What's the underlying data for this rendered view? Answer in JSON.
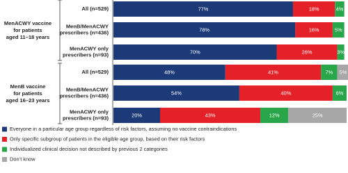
{
  "chart_data": {
    "type": "stacked-bar-horizontal",
    "groups": [
      {
        "label": [
          "MenACWY vaccine",
          "for patients",
          "aged 11–18 years"
        ],
        "categories": [
          [
            "All (n=529)"
          ],
          [
            "MenB/MenACWY",
            "prescribers (n=436)"
          ],
          [
            "MenACWY only",
            "prescribers (n=93)"
          ]
        ]
      },
      {
        "label": [
          "MenB vaccine",
          "for patients",
          "aged 16–23 years"
        ],
        "categories": [
          [
            "All (n=529)"
          ],
          [
            "MenB/MenACWY",
            "prescribers (n=436)"
          ],
          [
            "MenACWY only",
            "prescribers (n=93)"
          ]
        ]
      }
    ],
    "xlim": [
      0,
      100
    ],
    "series": [
      {
        "name": "Everyone in a particular age group regardless of risk factors, assuming no vaccine contraindications",
        "color": "#1c3a78",
        "values": [
          77,
          78,
          70,
          48,
          54,
          20
        ],
        "value_labels": [
          "77%",
          "78%",
          "70%",
          "48%",
          "54%",
          "20%"
        ]
      },
      {
        "name": "Only specific subgroup of patients in the eligible age group, based on their risk factors",
        "color": "#e42128",
        "values": [
          18,
          16,
          26,
          41,
          40,
          43
        ],
        "value_labels": [
          "18%",
          "16%",
          "26%",
          "41%",
          "40%",
          "43%"
        ]
      },
      {
        "name": "Individualized clinical decision not described by previous 2 categories",
        "color": "#2aa64a",
        "values": [
          4,
          5,
          3,
          7,
          6,
          12
        ],
        "value_labels": [
          "4%",
          "5%",
          "3%",
          "7%",
          "6%",
          "12%"
        ]
      },
      {
        "name": "Don’t know",
        "color": "#a7a7a7",
        "values": [
          null,
          null,
          null,
          5,
          null,
          25
        ],
        "value_labels": [
          null,
          null,
          null,
          "5%",
          null,
          "25%"
        ]
      }
    ]
  }
}
